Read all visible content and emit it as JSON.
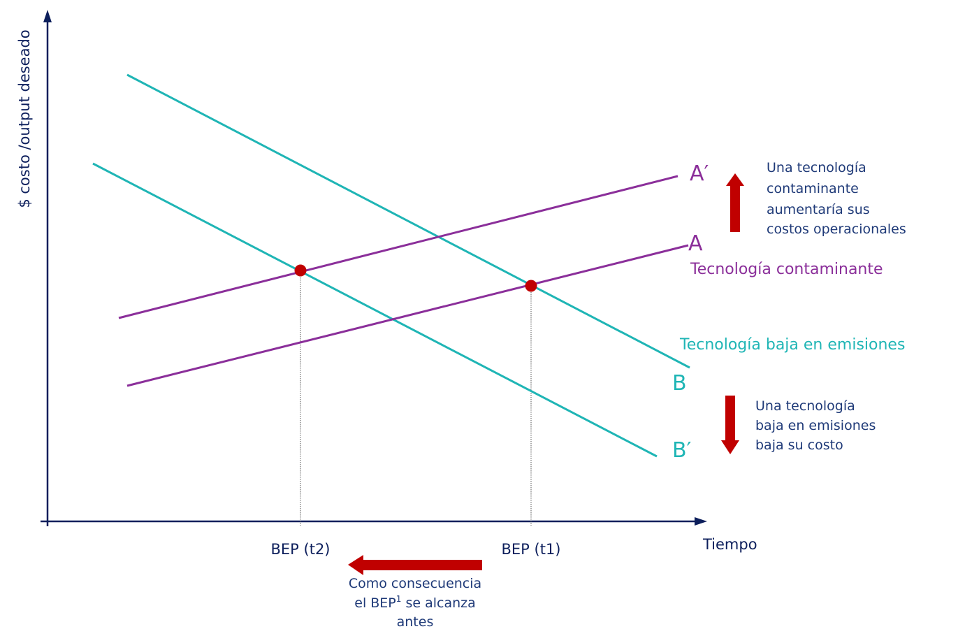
{
  "colors": {
    "teal": "#1fb5b5",
    "purple": "#8b2f9a",
    "red": "#c00000",
    "axis": "#0d1f5c",
    "text": "#1f3a78"
  },
  "axes": {
    "y_label": "$ costo /output deseado",
    "x_label": "Tiempo"
  },
  "lines": {
    "a_prime": "A′",
    "a": "A",
    "b": "B",
    "b_prime": "B′",
    "polluting": "Tecnología contaminante",
    "low_emission": "Tecnología baja en emisiones"
  },
  "ticks": {
    "bep_t2": "BEP (t2)",
    "bep_t1": "BEP (t1)"
  },
  "notes": {
    "up": [
      "Una tecnología",
      "contaminante",
      "aumentaría sus",
      "costos operacionales"
    ],
    "down": [
      "Una tecnología",
      "baja en emisiones",
      "baja su costo"
    ],
    "bottom_l1": "Como consecuencia",
    "bottom_l2_a": "el BEP",
    "bottom_l2_sup": "1",
    "bottom_l2_b": " se alcanza",
    "bottom_l3": "antes"
  }
}
